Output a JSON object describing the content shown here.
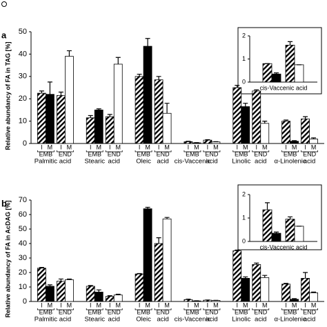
{
  "chart_data": [
    {
      "type": "bar",
      "panel": "a",
      "ylabel": "Relative abundancy of FA in TAG [%]",
      "categories": [
        [
          "Palmitic",
          "acid"
        ],
        [
          "Stearic",
          "acid"
        ],
        [
          "Oleic",
          "acid"
        ],
        [
          "cis-Vaccenic",
          "acid"
        ],
        [
          "Linolic",
          "acid"
        ],
        [
          "α-Linolenic",
          "acid"
        ]
      ],
      "bar_labels": [
        "I",
        "M",
        "I",
        "M"
      ],
      "group_labels": [
        "EMB",
        "END"
      ],
      "ylim": [
        0,
        50
      ],
      "yticks": [
        0,
        10,
        20,
        30,
        40,
        50
      ],
      "series": [
        {
          "color": "#ffffff",
          "hatched": true,
          "values": [
            22.5,
            11.5,
            30,
            0.8,
            25,
            10
          ],
          "errors": [
            1,
            1,
            1,
            0.2,
            1,
            0.5
          ]
        },
        {
          "color": "#000000",
          "hatched": false,
          "values": [
            22,
            15,
            43.5,
            0.3,
            16.5,
            1
          ],
          "errors": [
            5.5,
            0.5,
            3.5,
            0.1,
            1.5,
            0.3
          ]
        },
        {
          "color": "#ffffff",
          "hatched": true,
          "values": [
            21.5,
            12,
            28.5,
            1.5,
            23.5,
            11
          ],
          "errors": [
            1.5,
            1,
            1.5,
            0.2,
            0.5,
            1
          ]
        },
        {
          "color": "#ffffff",
          "hatched": false,
          "values": [
            39,
            35.5,
            13.5,
            0.7,
            9,
            2
          ],
          "errors": [
            2.5,
            3,
            4.5,
            0.1,
            1,
            0.5
          ]
        }
      ]
    },
    {
      "type": "bar",
      "panel": "b",
      "ylabel": "Relative abundancy of FA in AcDAG [%]",
      "categories": [
        [
          "Palmitic",
          "acid"
        ],
        [
          "Stearic",
          "acid"
        ],
        [
          "Oleic",
          "acid"
        ],
        [
          "cis-Vaccenic",
          "acid"
        ],
        [
          "Linolic",
          "acid"
        ],
        [
          "α-Linolenic",
          "acid"
        ]
      ],
      "bar_labels": [
        "I",
        "M",
        "I",
        "M"
      ],
      "group_labels": [
        "EMB",
        "END"
      ],
      "ylim": [
        0,
        70
      ],
      "yticks": [
        0,
        10,
        20,
        30,
        40,
        50,
        60,
        70
      ],
      "series": [
        {
          "color": "#ffffff",
          "hatched": true,
          "values": [
            23,
            10.5,
            19,
            1.3,
            35,
            12
          ],
          "errors": [
            0.5,
            0.5,
            0.3,
            0.3,
            0.5,
            0.5
          ]
        },
        {
          "color": "#000000",
          "hatched": false,
          "values": [
            10.5,
            6.5,
            64,
            0.4,
            16,
            1.5
          ],
          "errors": [
            1,
            1.5,
            1,
            0.1,
            1,
            0.5
          ]
        },
        {
          "color": "#ffffff",
          "hatched": true,
          "values": [
            14,
            3.5,
            40,
            0.9,
            25.5,
            16
          ],
          "errors": [
            1.5,
            0.5,
            4,
            0.1,
            1,
            4
          ]
        },
        {
          "color": "#ffffff",
          "hatched": false,
          "values": [
            15,
            4.5,
            57,
            0.7,
            16.5,
            6
          ],
          "errors": [
            0.5,
            0.5,
            1,
            0.1,
            1.5,
            0.5
          ]
        }
      ]
    },
    {
      "type": "bar",
      "categories": [
        "cis-Vaccenic acid"
      ],
      "ylim": [
        0,
        2
      ],
      "yticks": [
        0,
        1,
        2
      ],
      "series": [
        {
          "color": "#ffffff",
          "hatched": true,
          "values": [
            0.8
          ],
          "errors": [
            0
          ]
        },
        {
          "color": "#000000",
          "hatched": false,
          "values": [
            0.35
          ],
          "errors": [
            0.05
          ]
        },
        {
          "color": "#ffffff",
          "hatched": true,
          "values": [
            1.6
          ],
          "errors": [
            0.15
          ]
        },
        {
          "color": "#ffffff",
          "hatched": false,
          "values": [
            0.75
          ],
          "errors": [
            0
          ]
        }
      ]
    },
    {
      "type": "bar",
      "categories": [
        "cis-Vaccenic acid"
      ],
      "ylim": [
        0,
        2
      ],
      "yticks": [
        0,
        1,
        2
      ],
      "series": [
        {
          "color": "#ffffff",
          "hatched": true,
          "values": [
            1.35
          ],
          "errors": [
            0.3
          ]
        },
        {
          "color": "#000000",
          "hatched": false,
          "values": [
            0.35
          ],
          "errors": [
            0.05
          ]
        },
        {
          "color": "#ffffff",
          "hatched": true,
          "values": [
            0.95
          ],
          "errors": [
            0.1
          ]
        },
        {
          "color": "#ffffff",
          "hatched": false,
          "values": [
            0.65
          ],
          "errors": [
            0
          ]
        }
      ]
    }
  ]
}
